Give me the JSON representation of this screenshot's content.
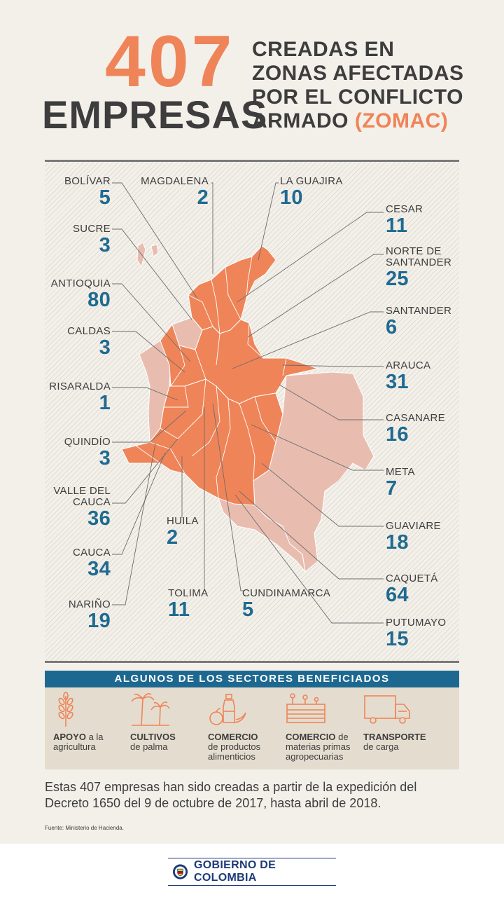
{
  "header": {
    "number": "407",
    "word": "EMPRESAS",
    "subtitle_lines": [
      "CREADAS EN",
      "ZONAS AFECTADAS",
      "POR EL CONFLICTO"
    ],
    "subtitle_last": "ARMADO",
    "subtitle_accent": "(ZOMAC)"
  },
  "map": {
    "colors": {
      "highlight": "#ef8458",
      "other": "#e8bdb0",
      "lines": "#ffffff",
      "leader": "#6d6d6d"
    },
    "departments": [
      {
        "name": "BOLÍVAR",
        "value": "5"
      },
      {
        "name": "MAGDALENA",
        "value": "2"
      },
      {
        "name": "LA GUAJIRA",
        "value": "10"
      },
      {
        "name": "CESAR",
        "value": "11"
      },
      {
        "name": "SUCRE",
        "value": "3"
      },
      {
        "name": "NORTE DE",
        "name2": "SANTANDER",
        "value": "25"
      },
      {
        "name": "ANTIOQUIA",
        "value": "80"
      },
      {
        "name": "SANTANDER",
        "value": "6"
      },
      {
        "name": "CALDAS",
        "value": "3"
      },
      {
        "name": "ARAUCA",
        "value": "31"
      },
      {
        "name": "RISARALDA",
        "value": "1"
      },
      {
        "name": "CASANARE",
        "value": "16"
      },
      {
        "name": "QUINDÍO",
        "value": "3"
      },
      {
        "name": "META",
        "value": "7"
      },
      {
        "name": "VALLE DEL",
        "name2": "CAUCA",
        "value": "36"
      },
      {
        "name": "HUILA",
        "value": "2"
      },
      {
        "name": "GUAVIARE",
        "value": "18"
      },
      {
        "name": "CAUCA",
        "value": "34"
      },
      {
        "name": "CAQUETÁ",
        "value": "64"
      },
      {
        "name": "TOLIMA",
        "value": "11"
      },
      {
        "name": "CUNDINAMARCA",
        "value": "5"
      },
      {
        "name": "NARIÑO",
        "value": "19"
      },
      {
        "name": "PUTUMAYO",
        "value": "15"
      }
    ]
  },
  "sectors": {
    "title": "ALGUNOS DE LOS SECTORES BENEFICIADOS",
    "items": [
      {
        "icon": "wheat-icon",
        "bold": "APOYO",
        "rest1": " a la",
        "rest2": "agricultura",
        "rest3": ""
      },
      {
        "icon": "palm-tree-icon",
        "bold": "CULTIVOS",
        "rest1": "",
        "rest2": "de palma",
        "rest3": ""
      },
      {
        "icon": "food-products-icon",
        "bold": "COMERCIO",
        "rest1": "",
        "rest2": "de productos",
        "rest3": "alimenticios"
      },
      {
        "icon": "factory-icon",
        "bold": "COMERCIO",
        "rest1": " de",
        "rest2": "materias primas",
        "rest3": "agropecuarias"
      },
      {
        "icon": "truck-icon",
        "bold": "TRANSPORTE",
        "rest1": "",
        "rest2": "de carga",
        "rest3": ""
      }
    ]
  },
  "footnote": {
    "line1": "Estas 407 empresas han sido creadas a partir de la expedición del",
    "line2": "Decreto 1650 del 9 de octubre de 2017, hasta abril de 2018."
  },
  "source": "Fuente: Ministerio de Hacienda.",
  "footer": {
    "logo_text": "GOBIERNO DE COLOMBIA"
  }
}
